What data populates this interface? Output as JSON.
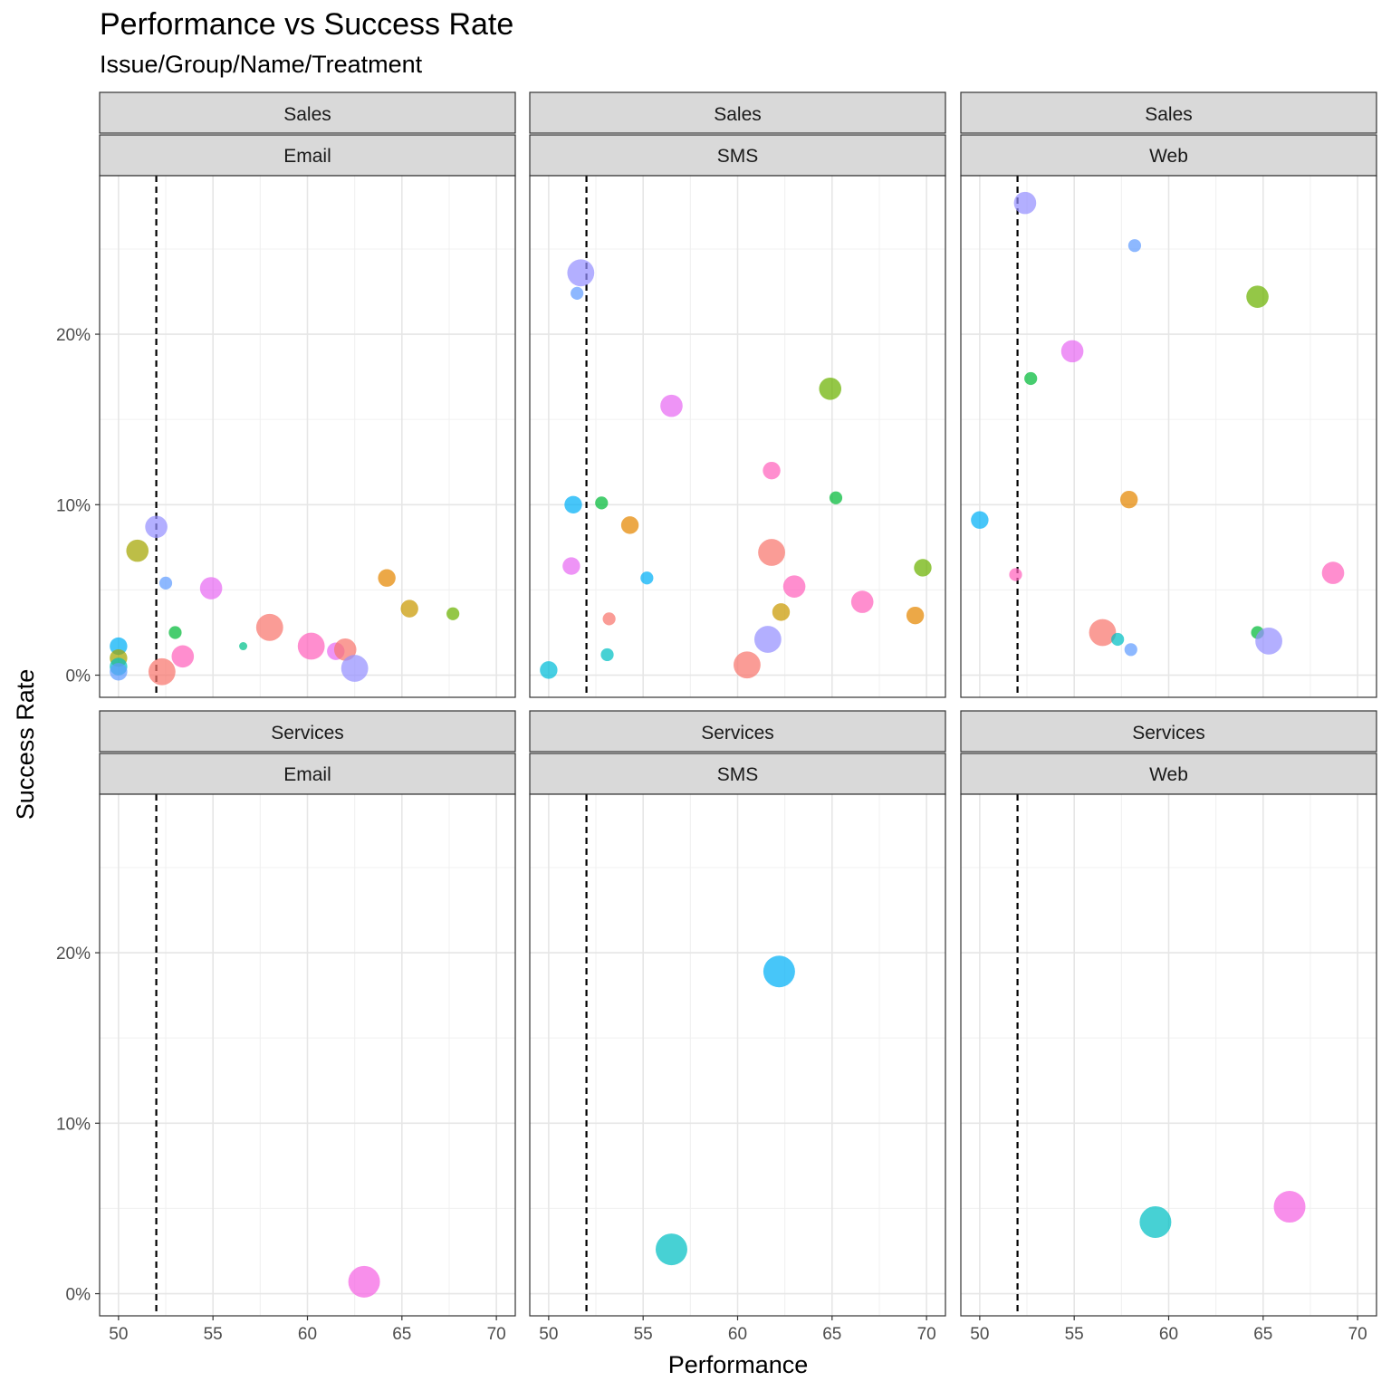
{
  "chart_data": {
    "type": "scatter",
    "title": "Performance vs Success Rate",
    "subtitle": "Issue/Group/Name/Treatment",
    "xlabel": "Performance",
    "ylabel": "Success Rate",
    "xlim": [
      49,
      71
    ],
    "ylim": [
      -1.3,
      29.3
    ],
    "x_ticks": [
      50,
      55,
      60,
      65,
      70
    ],
    "y_ticks": [
      0,
      10,
      20
    ],
    "y_tick_format": "percent",
    "reference_line": {
      "x": 52,
      "style": "dashed"
    },
    "grid": true,
    "legend": "none",
    "panels": [
      {
        "row": "Sales",
        "col": "Email",
        "points": [
          {
            "x": 50.0,
            "y": 1.7,
            "size": 2,
            "color": "#00B0F6"
          },
          {
            "x": 50.0,
            "y": 1.0,
            "size": 2,
            "color": "#A3A500"
          },
          {
            "x": 50.0,
            "y": 0.5,
            "size": 2,
            "color": "#00BFC4"
          },
          {
            "x": 50.0,
            "y": 0.2,
            "size": 2,
            "color": "#619CFF"
          },
          {
            "x": 51.0,
            "y": 7.3,
            "size": 3,
            "color": "#A3A500"
          },
          {
            "x": 52.0,
            "y": 8.7,
            "size": 3,
            "color": "#9590FF"
          },
          {
            "x": 52.5,
            "y": 5.4,
            "size": 1,
            "color": "#619CFF"
          },
          {
            "x": 52.3,
            "y": 0.2,
            "size": 4,
            "color": "#F8766D"
          },
          {
            "x": 53.0,
            "y": 2.5,
            "size": 1,
            "color": "#00BA38"
          },
          {
            "x": 53.4,
            "y": 1.1,
            "size": 3,
            "color": "#FF62BC"
          },
          {
            "x": 54.9,
            "y": 5.1,
            "size": 3,
            "color": "#E76BF3"
          },
          {
            "x": 56.6,
            "y": 1.7,
            "size": 0,
            "color": "#00C08B"
          },
          {
            "x": 58.0,
            "y": 2.8,
            "size": 4,
            "color": "#F8766D"
          },
          {
            "x": 60.2,
            "y": 1.7,
            "size": 4,
            "color": "#FF62BC"
          },
          {
            "x": 61.5,
            "y": 1.4,
            "size": 2,
            "color": "#E76BF3"
          },
          {
            "x": 62.0,
            "y": 1.5,
            "size": 3,
            "color": "#F8766D"
          },
          {
            "x": 62.5,
            "y": 0.4,
            "size": 4,
            "color": "#9590FF"
          },
          {
            "x": 64.2,
            "y": 5.7,
            "size": 2,
            "color": "#E58700"
          },
          {
            "x": 65.4,
            "y": 3.9,
            "size": 2,
            "color": "#C99800"
          },
          {
            "x": 67.7,
            "y": 3.6,
            "size": 1,
            "color": "#6BB100"
          }
        ]
      },
      {
        "row": "Sales",
        "col": "SMS",
        "points": [
          {
            "x": 51.7,
            "y": 23.6,
            "size": 4,
            "color": "#9590FF"
          },
          {
            "x": 51.5,
            "y": 22.4,
            "size": 1,
            "color": "#619CFF"
          },
          {
            "x": 56.5,
            "y": 15.8,
            "size": 3,
            "color": "#E76BF3"
          },
          {
            "x": 64.9,
            "y": 16.8,
            "size": 3,
            "color": "#6BB100"
          },
          {
            "x": 61.8,
            "y": 12.0,
            "size": 2,
            "color": "#FF62BC"
          },
          {
            "x": 65.2,
            "y": 10.4,
            "size": 1,
            "color": "#00BA38"
          },
          {
            "x": 52.8,
            "y": 10.1,
            "size": 1,
            "color": "#00BA38"
          },
          {
            "x": 51.3,
            "y": 10.0,
            "size": 2,
            "color": "#00B0F6"
          },
          {
            "x": 54.3,
            "y": 8.8,
            "size": 2,
            "color": "#E58700"
          },
          {
            "x": 61.8,
            "y": 7.2,
            "size": 4,
            "color": "#F8766D"
          },
          {
            "x": 51.2,
            "y": 6.4,
            "size": 2,
            "color": "#E76BF3"
          },
          {
            "x": 69.8,
            "y": 6.3,
            "size": 2,
            "color": "#6BB100"
          },
          {
            "x": 55.2,
            "y": 5.7,
            "size": 1,
            "color": "#00B0F6"
          },
          {
            "x": 63.0,
            "y": 5.2,
            "size": 3,
            "color": "#FF62BC"
          },
          {
            "x": 66.6,
            "y": 4.3,
            "size": 3,
            "color": "#FF62BC"
          },
          {
            "x": 62.3,
            "y": 3.7,
            "size": 2,
            "color": "#C99800"
          },
          {
            "x": 69.4,
            "y": 3.5,
            "size": 2,
            "color": "#E58700"
          },
          {
            "x": 53.2,
            "y": 3.3,
            "size": 1,
            "color": "#F8766D"
          },
          {
            "x": 61.6,
            "y": 2.1,
            "size": 4,
            "color": "#9590FF"
          },
          {
            "x": 53.1,
            "y": 1.2,
            "size": 1,
            "color": "#00BFC4"
          },
          {
            "x": 60.5,
            "y": 0.6,
            "size": 4,
            "color": "#F8766D"
          },
          {
            "x": 50.0,
            "y": 0.3,
            "size": 2,
            "color": "#00BCD8"
          }
        ]
      },
      {
        "row": "Sales",
        "col": "Web",
        "points": [
          {
            "x": 52.4,
            "y": 27.7,
            "size": 3,
            "color": "#9590FF"
          },
          {
            "x": 58.2,
            "y": 25.2,
            "size": 1,
            "color": "#619CFF"
          },
          {
            "x": 64.7,
            "y": 22.2,
            "size": 3,
            "color": "#6BB100"
          },
          {
            "x": 54.9,
            "y": 19.0,
            "size": 3,
            "color": "#E76BF3"
          },
          {
            "x": 52.7,
            "y": 17.4,
            "size": 1,
            "color": "#00BA38"
          },
          {
            "x": 57.9,
            "y": 10.3,
            "size": 2,
            "color": "#E58700"
          },
          {
            "x": 50.0,
            "y": 9.1,
            "size": 2,
            "color": "#00B0F6"
          },
          {
            "x": 51.9,
            "y": 5.9,
            "size": 1,
            "color": "#FF62BC"
          },
          {
            "x": 68.7,
            "y": 6.0,
            "size": 3,
            "color": "#FF62BC"
          },
          {
            "x": 56.5,
            "y": 2.5,
            "size": 4,
            "color": "#F8766D"
          },
          {
            "x": 57.3,
            "y": 2.1,
            "size": 1,
            "color": "#00BFC4"
          },
          {
            "x": 64.7,
            "y": 2.5,
            "size": 1,
            "color": "#00BA38"
          },
          {
            "x": 58.0,
            "y": 1.5,
            "size": 1,
            "color": "#619CFF"
          },
          {
            "x": 65.3,
            "y": 2.0,
            "size": 4,
            "color": "#9590FF"
          }
        ]
      },
      {
        "row": "Services",
        "col": "Email",
        "points": [
          {
            "x": 63.0,
            "y": 0.7,
            "size": 5,
            "color": "#F564E3"
          }
        ]
      },
      {
        "row": "Services",
        "col": "SMS",
        "points": [
          {
            "x": 62.2,
            "y": 18.9,
            "size": 5,
            "color": "#00B0F6"
          },
          {
            "x": 56.5,
            "y": 2.6,
            "size": 5,
            "color": "#00BFC4"
          }
        ]
      },
      {
        "row": "Services",
        "col": "Web",
        "points": [
          {
            "x": 59.3,
            "y": 4.2,
            "size": 5,
            "color": "#00BFC4"
          },
          {
            "x": 66.4,
            "y": 5.1,
            "size": 5,
            "color": "#F564E3"
          }
        ]
      }
    ]
  }
}
